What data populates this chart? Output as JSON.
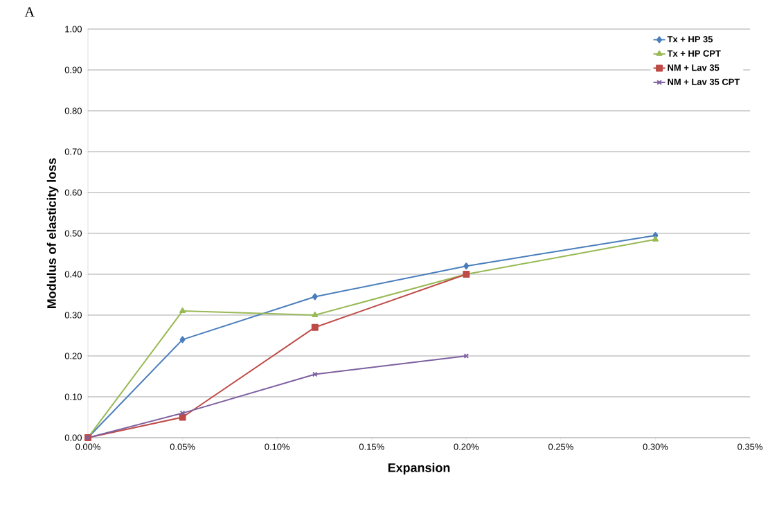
{
  "chart_data": {
    "type": "line",
    "xlabel": "Expansion",
    "ylabel": "Modulus of elasticity loss",
    "annotations": [
      "A"
    ],
    "x": [
      0,
      0.05,
      0.12,
      0.2,
      0.3
    ],
    "series": [
      {
        "name": "Tx + HP 35",
        "color": "#4a7ebb",
        "marker": "diamond",
        "values": [
          0,
          0.24,
          0.345,
          0.42,
          0.495
        ]
      },
      {
        "name": "Tx + HP CPT",
        "color": "#98b954",
        "marker": "triangle",
        "values": [
          0,
          0.31,
          0.3,
          0.4,
          0.485
        ]
      },
      {
        "name": "NM + Lav 35",
        "color": "#be4b48",
        "marker": "square",
        "values": [
          0,
          0.05,
          0.27,
          0.4,
          null
        ]
      },
      {
        "name": "NM + Lav 35 CPT",
        "color": "#7d60a0",
        "marker": "cross",
        "values": [
          0,
          0.06,
          0.155,
          0.2,
          null
        ]
      }
    ],
    "xlim": [
      0,
      0.35
    ],
    "xticks": [
      {
        "value": 0,
        "label": "0.00%"
      },
      {
        "value": 0.05,
        "label": "0.05%"
      },
      {
        "value": 0.1,
        "label": "0.10%"
      },
      {
        "value": 0.15,
        "label": "0.15%"
      },
      {
        "value": 0.2,
        "label": "0.20%"
      },
      {
        "value": 0.25,
        "label": "0.25%"
      },
      {
        "value": 0.3,
        "label": "0.30%"
      },
      {
        "value": 0.35,
        "label": "0.35%"
      }
    ],
    "ylim": [
      0,
      1
    ],
    "yticks": [
      {
        "value": 0,
        "label": "0.00"
      },
      {
        "value": 0.1,
        "label": "0.10"
      },
      {
        "value": 0.2,
        "label": "0.20"
      },
      {
        "value": 0.3,
        "label": "0.30"
      },
      {
        "value": 0.4,
        "label": "0.40"
      },
      {
        "value": 0.5,
        "label": "0.50"
      },
      {
        "value": 0.6,
        "label": "0.60"
      },
      {
        "value": 0.7,
        "label": "0.70"
      },
      {
        "value": 0.8,
        "label": "0.80"
      },
      {
        "value": 0.9,
        "label": "0.90"
      },
      {
        "value": 1,
        "label": "1.00"
      }
    ],
    "grid": "y",
    "legend": "top right",
    "line_style": "solid"
  }
}
